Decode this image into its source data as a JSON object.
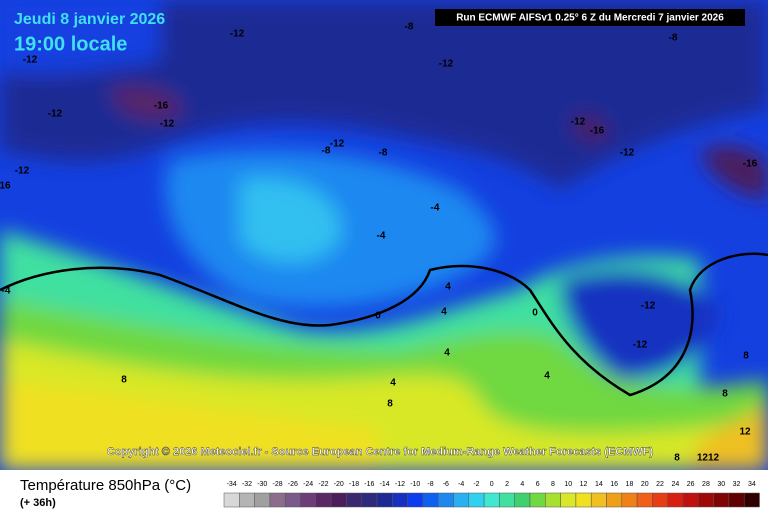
{
  "header": {
    "date": "Jeudi 8 janvier 2026",
    "time": "19:00 locale",
    "run": "Run ECMWF AIFSv1 0.25° 6 Z du Mercredi 7 janvier 2026"
  },
  "contours": [
    "-12",
    "-8",
    "-8",
    "-12",
    "-12",
    "-16",
    "-12",
    "-12",
    "-12",
    "-16",
    "-12",
    "-8",
    "-8",
    "-12",
    "-12",
    "-16",
    "16",
    "-4",
    "-4",
    "-4",
    "4",
    "4",
    "0",
    "0",
    "-12",
    "-12",
    "4",
    "8",
    "4",
    "4",
    "8",
    "8",
    "8",
    "12",
    "8",
    "1212"
  ],
  "copyright": "Copyright © 2026 Meteociel.fr - Source European Centre for Medium-Range Weather Forecasts (ECMWF)",
  "legend": {
    "title": "Température 850hPa (°C)",
    "lead": "(+ 36h)",
    "labels": [
      "-34",
      "-32",
      "-30",
      "-28",
      "-26",
      "-24",
      "-22",
      "-20",
      "-18",
      "-16",
      "-14",
      "-12",
      "-10",
      "-8",
      "-6",
      "-4",
      "-2",
      "0",
      "2",
      "4",
      "6",
      "8",
      "10",
      "12",
      "14",
      "16",
      "18",
      "20",
      "22",
      "24",
      "26",
      "28",
      "30",
      "32",
      "34"
    ],
    "colors": [
      "#d8d8d8",
      "#b4b4b4",
      "#a0a0a0",
      "#8c6e8c",
      "#7a5a8a",
      "#6e3c78",
      "#5a2864",
      "#4c1e5a",
      "#3c2870",
      "#2e2a7c",
      "#1e2a94",
      "#1830c0",
      "#0a3cf0",
      "#1060f0",
      "#1e88f0",
      "#28b0f0",
      "#30d0f0",
      "#40e8d0",
      "#40e0a0",
      "#40d070",
      "#70d840",
      "#a8e030",
      "#d8e828",
      "#f0e020",
      "#f0c020",
      "#f0a018",
      "#f08018",
      "#f06018",
      "#e83c14",
      "#d82010",
      "#c01010",
      "#a00808",
      "#800404",
      "#600000",
      "#300000"
    ]
  }
}
